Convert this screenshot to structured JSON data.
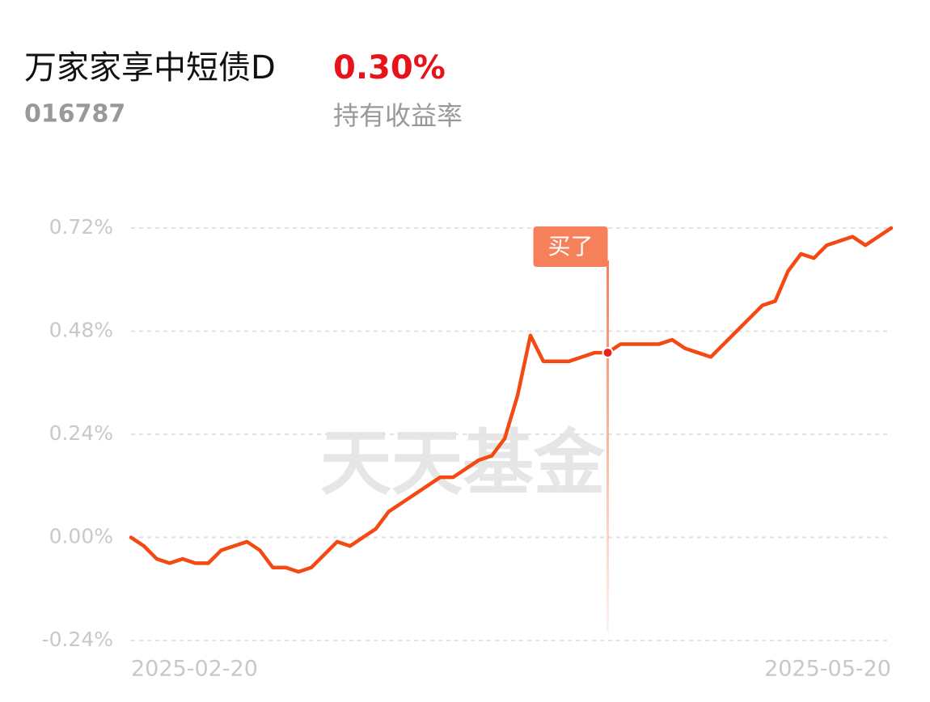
{
  "header": {
    "title": "万家家享中短债D",
    "code": "016787",
    "return": "0.30%",
    "return_label": "持有收益率"
  },
  "chart_data": {
    "type": "line",
    "watermark": "天天基金",
    "categories": [
      "2025-02-20",
      null,
      null,
      null,
      null,
      null,
      null,
      null,
      null,
      null,
      null,
      null,
      null,
      null,
      null,
      null,
      null,
      null,
      null,
      null,
      null,
      null,
      null,
      null,
      null,
      null,
      null,
      null,
      null,
      null,
      null,
      null,
      null,
      null,
      null,
      null,
      null,
      null,
      null,
      null,
      null,
      null,
      null,
      null,
      null,
      null,
      null,
      null,
      null,
      null,
      null,
      null,
      null,
      null,
      null,
      null,
      null,
      null,
      null,
      "2025-05-20"
    ],
    "series": [
      {
        "name": "持有收益率",
        "color": "#f24a12",
        "values": [
          0.0,
          -0.02,
          -0.05,
          -0.06,
          -0.05,
          -0.06,
          -0.06,
          -0.03,
          -0.02,
          -0.01,
          -0.03,
          -0.07,
          -0.07,
          -0.08,
          -0.07,
          -0.04,
          -0.01,
          -0.02,
          0.0,
          0.02,
          0.06,
          0.08,
          0.1,
          0.12,
          0.14,
          0.14,
          0.16,
          0.18,
          0.19,
          0.23,
          0.33,
          0.47,
          0.41,
          0.41,
          0.41,
          0.42,
          0.43,
          0.43,
          0.45,
          0.45,
          0.45,
          0.45,
          0.46,
          0.44,
          0.43,
          0.42,
          0.45,
          0.48,
          0.51,
          0.54,
          0.55,
          0.62,
          0.66,
          0.65,
          0.68,
          0.69,
          0.7,
          0.68,
          0.7,
          0.72
        ]
      }
    ],
    "annotation": {
      "label": "买了",
      "category_index": 37,
      "color": "#f5805a"
    },
    "ylim": [
      -0.24,
      0.72
    ],
    "yticks": [
      {
        "value": -0.24,
        "label": "-0.24%"
      },
      {
        "value": 0.0,
        "label": "0.00%"
      },
      {
        "value": 0.24,
        "label": "0.24%"
      },
      {
        "value": 0.48,
        "label": "0.48%"
      },
      {
        "value": 0.72,
        "label": "0.72%"
      }
    ],
    "grid": true
  }
}
